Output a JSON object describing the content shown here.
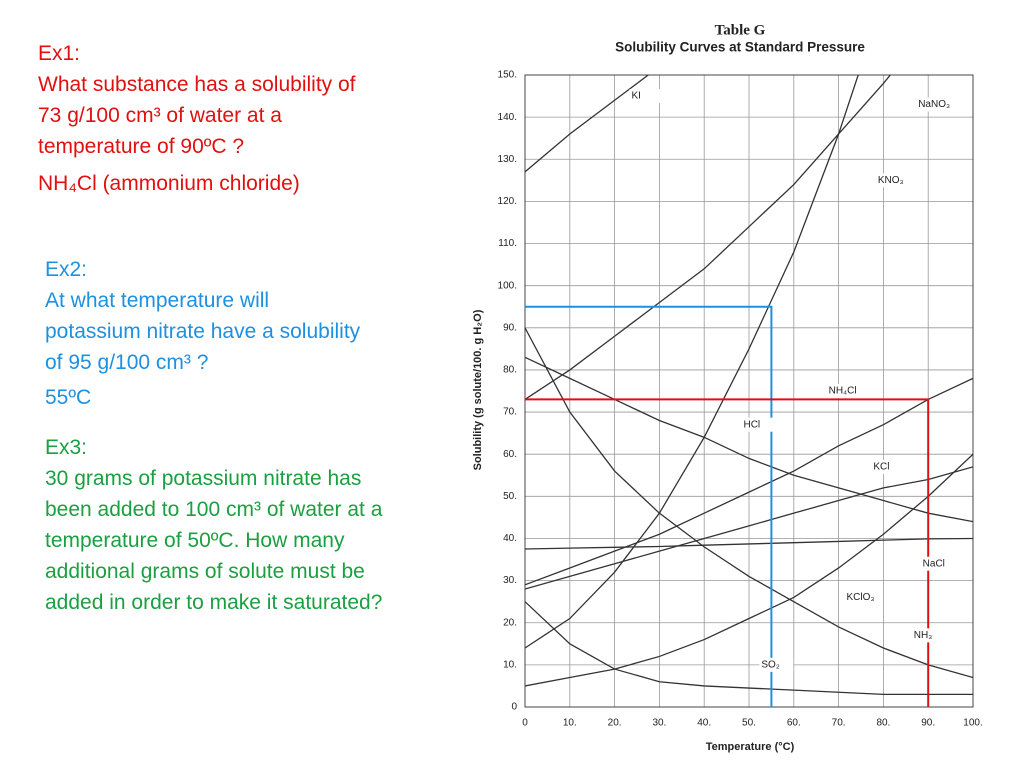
{
  "slide": {
    "ex1": {
      "heading": "Ex1:",
      "question": "What substance has a solubility of 73 g/100 cm³ of water at a temperature of 90ºC ?",
      "answer": "NH₄Cl (ammonium chloride)"
    },
    "ex2": {
      "heading": "Ex2:",
      "question": "At what temperature will potassium nitrate have a solubility of 95 g/100 cm³ ?",
      "answer": "55ºC"
    },
    "ex3": {
      "heading": "Ex3:",
      "question": "30 grams of potassium nitrate has been added to 100 cm³ of water at a temperature of 50ºC. How many additional grams of solute must be added in order to make it saturated?"
    }
  },
  "chart_data": {
    "type": "line",
    "title": "Table G",
    "subtitle": "Solubility Curves at Standard Pressure",
    "xlabel": "Temperature (°C)",
    "ylabel": "Solubility (g solute/100. g H₂O)",
    "x": [
      0,
      10,
      20,
      30,
      40,
      50,
      60,
      70,
      80,
      90,
      100
    ],
    "xlim": [
      0,
      100
    ],
    "ylim": [
      0,
      150
    ],
    "grid": true,
    "xticks": [
      0,
      {
        "value": 10,
        "label": "10."
      },
      {
        "value": 20,
        "label": "20."
      },
      {
        "value": 30,
        "label": "30."
      },
      {
        "value": 40,
        "label": "40."
      },
      {
        "value": 50,
        "label": "50."
      },
      {
        "value": 60,
        "label": "60."
      },
      {
        "value": 70,
        "label": "70."
      },
      {
        "value": 80,
        "label": "80."
      },
      {
        "value": 90,
        "label": "90."
      },
      {
        "value": 100,
        "label": "100."
      }
    ],
    "yticks": [
      0,
      {
        "value": 10,
        "label": "10."
      },
      {
        "value": 20,
        "label": "20."
      },
      {
        "value": 30,
        "label": "30."
      },
      {
        "value": 40,
        "label": "40."
      },
      {
        "value": 50,
        "label": "50."
      },
      {
        "value": 60,
        "label": "60."
      },
      {
        "value": 70,
        "label": "70."
      },
      {
        "value": 80,
        "label": "80."
      },
      {
        "value": 90,
        "label": "90."
      },
      {
        "value": 100,
        "label": "100."
      },
      {
        "value": 110,
        "label": "110."
      },
      {
        "value": 120,
        "label": "120."
      },
      {
        "value": 130,
        "label": "130."
      },
      {
        "value": 140,
        "label": "140."
      },
      {
        "value": 150,
        "label": "150."
      }
    ],
    "series": [
      {
        "name": "KI",
        "color": "#333333",
        "values": [
          127,
          136,
          144,
          152,
          null,
          null,
          null,
          null,
          null,
          null,
          null
        ]
      },
      {
        "name": "NaNO₃",
        "color": "#333333",
        "values": [
          73,
          80,
          88,
          96,
          104,
          114,
          124,
          136,
          148,
          161,
          null
        ]
      },
      {
        "name": "KNO₃",
        "color": "#333333",
        "values": [
          14,
          21,
          32,
          46,
          64,
          85,
          108,
          136,
          168,
          null,
          null
        ]
      },
      {
        "name": "NH₄Cl",
        "color": "#333333",
        "values": [
          29,
          33,
          37,
          41,
          46,
          51,
          56,
          62,
          67,
          73,
          78
        ]
      },
      {
        "name": "HCl",
        "color": "#333333",
        "values": [
          83,
          78,
          73,
          68,
          64,
          59,
          55,
          52,
          49,
          46,
          44
        ]
      },
      {
        "name": "KCl",
        "color": "#333333",
        "values": [
          28,
          31,
          34,
          37,
          40,
          43,
          46,
          49,
          52,
          54,
          57
        ]
      },
      {
        "name": "NaCl",
        "color": "#333333",
        "values": [
          37.5,
          37.7,
          37.9,
          38.1,
          38.4,
          38.7,
          39,
          39.3,
          39.6,
          39.9,
          40
        ]
      },
      {
        "name": "KClO₃",
        "color": "#333333",
        "values": [
          5,
          7,
          9,
          12,
          16,
          21,
          26,
          33,
          41,
          50,
          60
        ]
      },
      {
        "name": "NH₃",
        "color": "#333333",
        "values": [
          90,
          70,
          56,
          46,
          38,
          31,
          25,
          19,
          14,
          10,
          7
        ]
      },
      {
        "name": "SO₂",
        "color": "#333333",
        "values": [
          25,
          15,
          9,
          6,
          5,
          4.5,
          4,
          3.5,
          3,
          3,
          3
        ]
      }
    ],
    "guides": [
      {
        "x": 55,
        "y": 95,
        "color": "#1e90e0"
      },
      {
        "x": 90,
        "y": 73,
        "color": "#e01010"
      }
    ]
  }
}
